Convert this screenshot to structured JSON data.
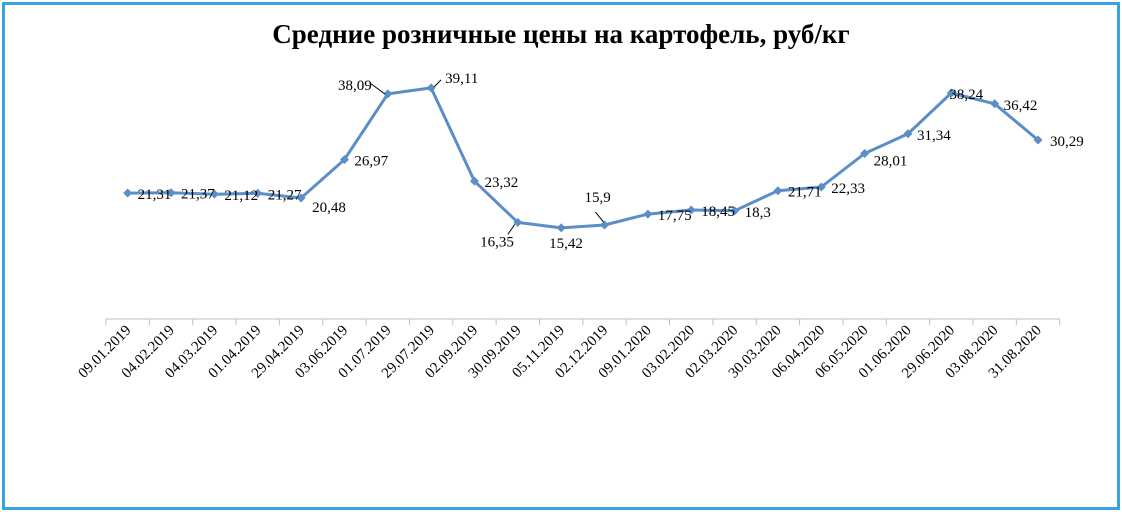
{
  "chart_data": {
    "type": "line",
    "title": "Средние розничные цены на картофель, руб/кг",
    "xlabel": "",
    "ylabel": "",
    "grid": false,
    "legend": "none",
    "ylim": [
      0,
      45
    ],
    "categories": [
      "09.01.2019",
      "04.02.2019",
      "04.03.2019",
      "01.04.2019",
      "29.04.2019",
      "03.06.2019",
      "01.07.2019",
      "29.07.2019",
      "02.09.2019",
      "30.09.2019",
      "05.11.2019",
      "02.12.2019",
      "09.01.2020",
      "03.02.2020",
      "02.03.2020",
      "30.03.2020",
      "06.04.2020",
      "06.05.2020",
      "01.06.2020",
      "29.06.2020",
      "03.08.2020",
      "31.08.2020"
    ],
    "series": [
      {
        "color": "#5b8ec6",
        "values": [
          21.31,
          21.37,
          21.12,
          21.27,
          20.48,
          26.97,
          38.09,
          39.11,
          23.32,
          16.35,
          15.42,
          15.9,
          17.75,
          18.45,
          18.3,
          21.71,
          22.33,
          28.01,
          31.34,
          38.24,
          36.42,
          30.29
        ],
        "labels": [
          "21,31",
          "21,37",
          "21,12",
          "21,27",
          "20,48",
          "26,97",
          "38,09",
          "39,11",
          "23,32",
          "16,35",
          "15,42",
          "15,9",
          "17,75",
          "18,45",
          "18,3",
          "21,71",
          "22,33",
          "28,01",
          "31,34",
          "38,24",
          "36,42",
          "30,29"
        ]
      }
    ]
  },
  "colors": {
    "frame": "#39a3dc",
    "line": "#5b8ec6",
    "axis": "#bfbfbf"
  }
}
